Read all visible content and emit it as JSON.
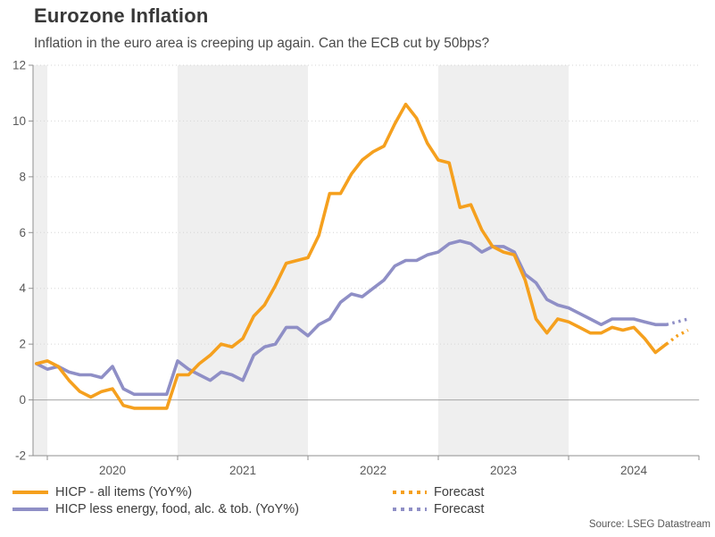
{
  "header": {
    "title": "Eurozone Inflation",
    "subtitle": "Inflation in the euro area is creeping up again. Can the ECB cut by 50bps?"
  },
  "source": "Source: LSEG Datastream",
  "colors": {
    "hicp": "#F5A01E",
    "core": "#8F8FC6",
    "band": "#EFEFEF",
    "grid": "#D6D6D6",
    "zero_line": "#A6A6A6",
    "axis": "#8F8F8F",
    "tick_text": "#595959"
  },
  "legend": [
    {
      "label": "HICP - all items (YoY%)",
      "style": "solid",
      "color": "#F5A01E"
    },
    {
      "label": "HICP less energy, food, alc. & tob. (YoY%)",
      "style": "solid",
      "color": "#8F8FC6"
    },
    {
      "label": "Forecast",
      "style": "dotted",
      "color": "#F5A01E"
    },
    {
      "label": "Forecast",
      "style": "dotted",
      "color": "#8F8FC6"
    }
  ],
  "chart_data": {
    "type": "line",
    "title": "Eurozone Inflation",
    "subtitle": "Inflation in the euro area is creeping up again. Can the ECB cut by 50bps?",
    "x_axis": {
      "unit": "month",
      "start": "2019-12",
      "end": "2024-10",
      "tick_labels": [
        "2020",
        "2021",
        "2022",
        "2023",
        "2024"
      ]
    },
    "y_axis": {
      "min": -2,
      "max": 12,
      "ticks": [
        -2,
        0,
        2,
        4,
        6,
        8,
        10,
        12
      ]
    },
    "grid": "dotted-horizontal",
    "legend_position": "bottom",
    "shaded_bands": [
      {
        "from": "2019-11",
        "to": "2020-01"
      },
      {
        "from": "2021-01",
        "to": "2022-01"
      },
      {
        "from": "2023-01",
        "to": "2024-01"
      }
    ],
    "series": [
      {
        "name": "HICP - all items (YoY%)",
        "color": "#F5A01E",
        "style": "solid",
        "values": [
          1.3,
          1.4,
          1.2,
          0.7,
          0.3,
          0.1,
          0.3,
          0.4,
          -0.2,
          -0.3,
          -0.3,
          -0.3,
          -0.3,
          0.9,
          0.9,
          1.3,
          1.6,
          2.0,
          1.9,
          2.2,
          3.0,
          3.4,
          4.1,
          4.9,
          5.0,
          5.1,
          5.9,
          7.4,
          7.4,
          8.1,
          8.6,
          8.9,
          9.1,
          9.9,
          10.6,
          10.1,
          9.2,
          8.6,
          8.5,
          6.9,
          7.0,
          6.1,
          5.5,
          5.3,
          5.2,
          4.3,
          2.9,
          2.4,
          2.9,
          2.8,
          2.6,
          2.4,
          2.4,
          2.6,
          2.5,
          2.6,
          2.2,
          1.7,
          2.0
        ]
      },
      {
        "name": "HICP less energy, food, alc. & tob. (YoY%)",
        "color": "#8F8FC6",
        "style": "solid",
        "values": [
          1.3,
          1.1,
          1.2,
          1.0,
          0.9,
          0.9,
          0.8,
          1.2,
          0.4,
          0.2,
          0.2,
          0.2,
          0.2,
          1.4,
          1.1,
          0.9,
          0.7,
          1.0,
          0.9,
          0.7,
          1.6,
          1.9,
          2.0,
          2.6,
          2.6,
          2.3,
          2.7,
          2.9,
          3.5,
          3.8,
          3.7,
          4.0,
          4.3,
          4.8,
          5.0,
          5.0,
          5.2,
          5.3,
          5.6,
          5.7,
          5.6,
          5.3,
          5.5,
          5.5,
          5.3,
          4.5,
          4.2,
          3.6,
          3.4,
          3.3,
          3.1,
          2.9,
          2.7,
          2.9,
          2.9,
          2.9,
          2.8,
          2.7,
          2.7
        ]
      }
    ],
    "forecast_series": [
      {
        "name": "Forecast",
        "color": "#F5A01E",
        "style": "dotted",
        "months": [
          "2024-11",
          "2024-12"
        ],
        "values": [
          2.3,
          2.5
        ]
      },
      {
        "name": "Forecast",
        "color": "#8F8FC6",
        "style": "dotted",
        "months": [
          "2024-11",
          "2024-12"
        ],
        "values": [
          2.8,
          2.9
        ]
      }
    ]
  }
}
